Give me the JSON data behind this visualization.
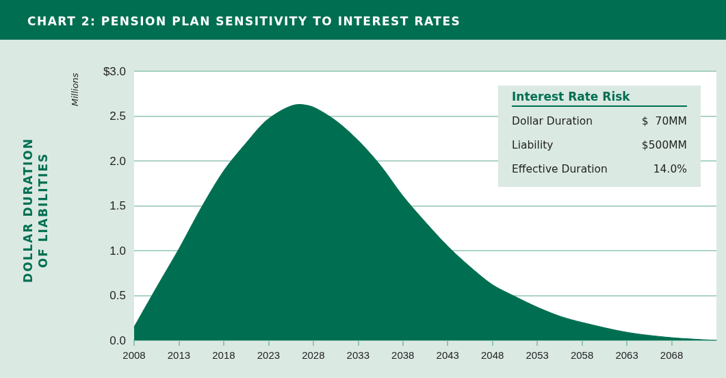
{
  "chart_data": {
    "type": "area",
    "title": "CHART 2: PENSION PLAN SENSITIVITY TO INTEREST RATES",
    "ylabel": "DOLLAR DURATION OF LIABILITIES",
    "annotations": [
      "Millions",
      "Interest Rate Risk",
      "Dollar Duration",
      "$  70MM",
      "Liability",
      "$500MM",
      "Effective Duration",
      "14.0%"
    ],
    "x": [
      2008,
      2010.5,
      2013,
      2015.5,
      2018,
      2020.5,
      2023,
      2026.4,
      2028,
      2030.5,
      2033,
      2035.5,
      2038,
      2040.5,
      2043,
      2045.5,
      2048,
      2050.5,
      2053,
      2055.5,
      2058,
      2063,
      2068,
      2073
    ],
    "series": [
      {
        "color": "#006f51",
        "values": [
          0.15,
          0.59,
          1.02,
          1.48,
          1.89,
          2.2,
          2.47,
          2.63,
          2.6,
          2.45,
          2.23,
          1.95,
          1.61,
          1.32,
          1.05,
          0.82,
          0.62,
          0.49,
          0.37,
          0.27,
          0.2,
          0.09,
          0.03,
          0
        ]
      }
    ],
    "xlim": [
      2008,
      2073
    ],
    "xticks": [
      2008,
      2013,
      2018,
      2023,
      2028,
      2033,
      2038,
      2043,
      2048,
      2053,
      2058,
      2063,
      2068
    ],
    "ylim": [
      0,
      3
    ],
    "yticks": [
      {
        "value": 0,
        "label": "0.0"
      },
      0.5,
      {
        "value": 1,
        "label": "1.0"
      },
      1.5,
      {
        "value": 2,
        "label": "2.0"
      },
      2.5,
      {
        "value": 3,
        "label": "$3.0"
      }
    ],
    "grid": "y",
    "marker": "none",
    "line_style": "solid"
  }
}
